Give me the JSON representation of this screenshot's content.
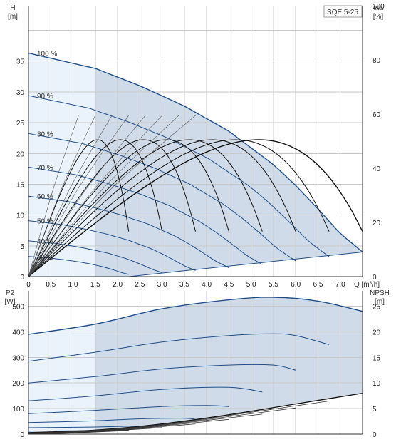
{
  "colors": {
    "curve": "#1f4e8c",
    "efficiency": "#111111",
    "region_main": "#cfdbe8",
    "region_light": "#eaf3fb",
    "grid": "#c8c8c8",
    "axis": "#333333"
  },
  "chart_data": [
    {
      "type": "line",
      "name": "head",
      "badge": "SQE 5-25",
      "ylabel_left": "H",
      "yunit_left": "[m]",
      "ylabel_right": "eta",
      "yunit_right": "[%]",
      "xunit": "Q [m³/h]",
      "xlim": [
        0,
        7.5
      ],
      "ylim": [
        0,
        44
      ],
      "y2lim": [
        0,
        100
      ],
      "xticks": [
        "0",
        "0.5",
        "1.0",
        "1.5",
        "2.0",
        "2.5",
        "3.0",
        "3.5",
        "4.0",
        "4.5",
        "5.0",
        "5.5",
        "6.0",
        "6.5",
        "7.0"
      ],
      "yticks": [
        "0",
        "5",
        "10",
        "15",
        "20",
        "25",
        "30",
        "35"
      ],
      "y2ticks": [
        "0",
        "20",
        "40",
        "60",
        "80",
        "100"
      ],
      "grid": true,
      "light_region_x": [
        0,
        1.5
      ],
      "speed_labels": [
        "100 %",
        "90 %",
        "80 %",
        "70 %",
        "60 %",
        "50 %",
        "40 %",
        "30 %"
      ],
      "speed_fraction": [
        1.0,
        0.9,
        0.8,
        0.7,
        0.6,
        0.5,
        0.4,
        0.3
      ],
      "head_curve_100": {
        "x": [
          0,
          1.5,
          2.5,
          3.5,
          4.5,
          5.5,
          6.0,
          6.5,
          7.0,
          7.5
        ],
        "y": [
          36.3,
          33.8,
          31.0,
          27.7,
          23.6,
          18.2,
          14.8,
          11.0,
          7.0,
          4.0
        ]
      },
      "efficiency_endpoints": {
        "x": [
          2.25,
          3.0,
          3.75,
          4.5,
          5.25,
          6.0,
          6.75,
          7.5
        ],
        "y": [
          4.3,
          4.3,
          4.2,
          4.2,
          4.2,
          4.2,
          4.1,
          4.0
        ]
      }
    },
    {
      "type": "line",
      "name": "power",
      "ylabel_left": "P2",
      "yunit_left": "[W]",
      "ylabel_right": "NPSH",
      "yunit_right": "[m]",
      "xlim": [
        0,
        7.5
      ],
      "ylim": [
        0,
        560
      ],
      "y2lim": [
        0,
        28
      ],
      "yticks": [
        "0",
        "100",
        "200",
        "300",
        "400",
        "500"
      ],
      "y2ticks": [
        "0",
        "5",
        "10",
        "15",
        "20",
        "25"
      ],
      "grid": true,
      "light_region_x": [
        0,
        1.5
      ],
      "power_curves": [
        {
          "x": [
            0,
            1.5,
            3.0,
            4.5,
            5.5,
            6.5,
            7.5
          ],
          "y": [
            390,
            430,
            490,
            525,
            535,
            520,
            480
          ]
        },
        {
          "x": [
            0,
            1.5,
            3.0,
            4.5,
            5.5,
            6.0,
            6.75
          ],
          "y": [
            285,
            320,
            360,
            385,
            392,
            385,
            350
          ]
        },
        {
          "x": [
            0,
            1.5,
            3.0,
            4.5,
            5.5,
            6.0
          ],
          "y": [
            200,
            225,
            255,
            270,
            270,
            250
          ]
        },
        {
          "x": [
            0,
            1.5,
            3.0,
            4.5,
            5.25
          ],
          "y": [
            130,
            150,
            175,
            183,
            165
          ]
        },
        {
          "x": [
            0,
            1.5,
            3.0,
            4.0,
            4.5
          ],
          "y": [
            80,
            93,
            108,
            112,
            108
          ]
        },
        {
          "x": [
            0,
            1.5,
            2.5,
            3.5,
            3.75
          ],
          "y": [
            45,
            52,
            60,
            62,
            58
          ]
        },
        {
          "x": [
            0,
            1.5,
            2.5,
            3.0
          ],
          "y": [
            25,
            28,
            32,
            32
          ]
        },
        {
          "x": [
            0,
            1.5,
            2.25
          ],
          "y": [
            12,
            14,
            16
          ]
        }
      ],
      "npsh_curve": {
        "x": [
          0,
          1.5,
          3.0,
          4.5,
          6.0,
          7.5
        ],
        "y": [
          0.3,
          0.8,
          2.0,
          3.8,
          5.9,
          8.0
        ]
      }
    }
  ]
}
